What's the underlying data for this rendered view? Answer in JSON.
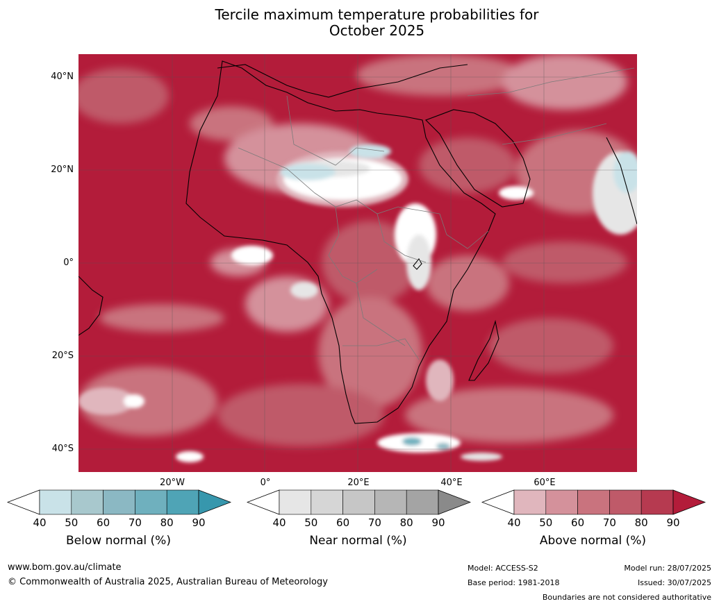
{
  "title_line1": "Tercile maximum temperature probabilities for",
  "title_line2": "October 2025",
  "latitude_labels": [
    "40°N",
    "20°N",
    "0°",
    "20°S",
    "40°S"
  ],
  "longitude_labels": [
    "20°W",
    "0°",
    "20°E",
    "40°E",
    "60°E"
  ],
  "legends": [
    {
      "title": "Below normal (%)",
      "ticks": [
        "40",
        "50",
        "60",
        "70",
        "80",
        "90"
      ],
      "colors": [
        "#ffffff",
        "#c9e2e8",
        "#a8c8cd",
        "#8bb8c3",
        "#6fb0be",
        "#4fa4b6",
        "#3797ad"
      ]
    },
    {
      "title": "Near normal (%)",
      "ticks": [
        "40",
        "50",
        "60",
        "70",
        "80",
        "90"
      ],
      "colors": [
        "#ffffff",
        "#e6e6e6",
        "#d6d6d6",
        "#c6c6c6",
        "#b6b6b6",
        "#a4a4a4",
        "#8a8a8a"
      ]
    },
    {
      "title": "Above normal (%)",
      "ticks": [
        "40",
        "50",
        "60",
        "70",
        "80",
        "90"
      ],
      "colors": [
        "#ffffff",
        "#e0b6bd",
        "#d4919b",
        "#c9737e",
        "#bf5a69",
        "#b63a50",
        "#b31c3a"
      ]
    }
  ],
  "footer": {
    "website": "www.bom.gov.au/climate",
    "copyright": "© Commonwealth of Australia 2025, Australian Bureau of Meteorology",
    "model": "Model: ACCESS-S2",
    "base_period": "Base period: 1981-2018",
    "model_run": "Model run: 28/07/2025",
    "issued": "Issued: 30/07/2025",
    "disclaimer": "Boundaries are not considered authoritative"
  }
}
